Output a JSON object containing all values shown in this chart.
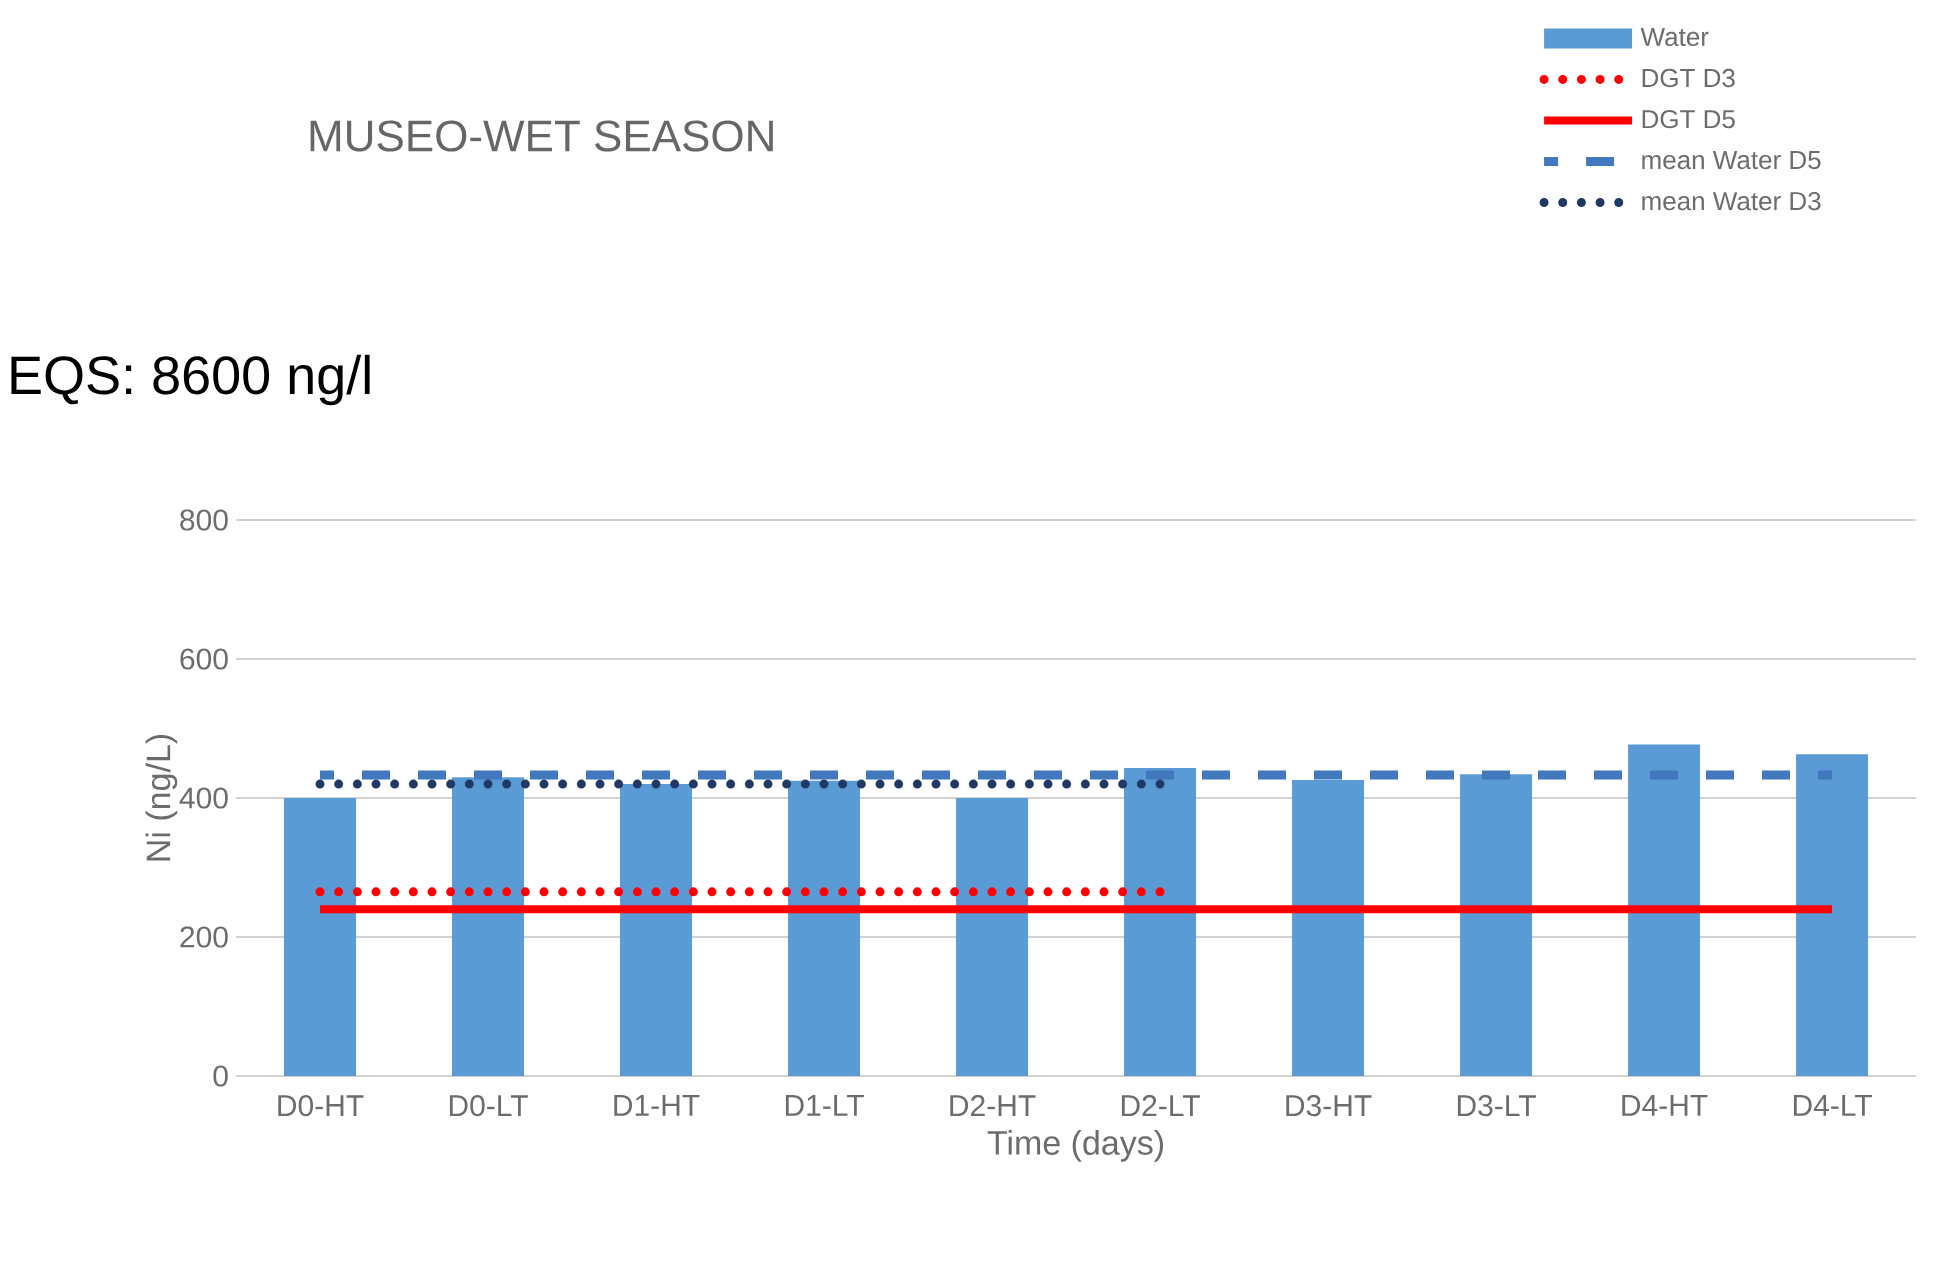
{
  "chart_data": {
    "type": "bar",
    "title": "MUSEO-WET SEASON",
    "xlabel": "Time (days)",
    "ylabel": "Ni (ng/L)",
    "annotations": [
      "EQS: 8600 ng/l"
    ],
    "categories": [
      "D0-HT",
      "D0-LT",
      "D1-HT",
      "D1-LT",
      "D2-HT",
      "D2-LT",
      "D3-HT",
      "D3-LT",
      "D4-HT",
      "D4-LT"
    ],
    "series": [
      {
        "name": "Water",
        "color": "#5b9bd5",
        "values": [
          400,
          430,
          420,
          425,
          400,
          443,
          426,
          434,
          477,
          463
        ]
      },
      {
        "name": "DGT D3",
        "type": "line",
        "line_style": "dotted",
        "color": "#ff0000",
        "values": [
          265,
          265,
          265,
          265,
          265,
          265,
          null,
          null,
          null,
          null
        ]
      },
      {
        "name": "DGT D5",
        "type": "line",
        "line_style": "solid",
        "color": "#ff0000",
        "values": [
          240,
          240,
          240,
          240,
          240,
          240,
          240,
          240,
          240,
          240
        ]
      },
      {
        "name": "mean Water D5",
        "type": "line",
        "line_style": "dashed",
        "color": "#4178be",
        "values": [
          433,
          433,
          433,
          433,
          433,
          433,
          433,
          433,
          433,
          433
        ]
      },
      {
        "name": "mean Water D3",
        "type": "line",
        "line_style": "dotted",
        "color": "#203864",
        "values": [
          420,
          420,
          420,
          420,
          420,
          420,
          null,
          null,
          null,
          null
        ]
      }
    ],
    "ylim": [
      0,
      800
    ],
    "yticks": [
      0,
      200,
      400,
      600,
      800
    ],
    "grid": "y",
    "legend": "top right"
  }
}
